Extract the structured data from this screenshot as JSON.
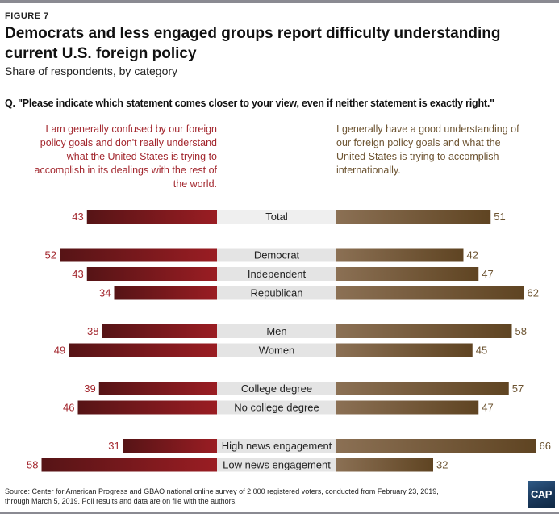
{
  "figure_label": "FIGURE 7",
  "title": "Democrats and less engaged groups report difficulty understanding current U.S. foreign policy",
  "subtitle": "Share of respondents, by category",
  "question": "Q. \"Please indicate which statement comes closer to your view, even if neither statement is exactly right.\"",
  "source": "Source: Center for American Progress and GBAO national online survey of 2,000 registered voters, conducted from February 23, 2019, through March 5, 2019. Poll results and data are on file with the authors.",
  "logo_text": "CAP",
  "colors": {
    "confused_dark": "#561416",
    "confused_light": "#9a1d23",
    "confused_label": "#a3272e",
    "understand_light": "#8b7054",
    "understand_dark": "#5f4422",
    "understand_label": "#6d5432",
    "category_bg": "#e4e4e4",
    "total_bg": "#efefef"
  },
  "chart_data": {
    "type": "bar",
    "orientation": "horizontal-diverging",
    "title": "Democrats and less engaged groups report difficulty understanding current U.S. foreign policy",
    "subtitle": "Share of respondents, by category",
    "unit": "percent",
    "xlim": [
      0,
      70
    ],
    "series": [
      {
        "name": "I am generally confused by our foreign policy goals and don't really understand what the United States is trying to accomplish in its dealings with the rest of the world.",
        "side": "left",
        "values": [
          43,
          52,
          43,
          34,
          38,
          49,
          39,
          46,
          31,
          58
        ]
      },
      {
        "name": "I generally have a good understanding of our foreign policy goals and what the United States is trying to accomplish internationally.",
        "side": "right",
        "values": [
          51,
          42,
          47,
          62,
          58,
          45,
          57,
          47,
          66,
          32
        ]
      }
    ],
    "categories": [
      "Total",
      "Democrat",
      "Independent",
      "Republican",
      "Men",
      "Women",
      "College degree",
      "No college degree",
      "High news engagement",
      "Low news engagement"
    ],
    "groups": [
      [
        "Total"
      ],
      [
        "Democrat",
        "Independent",
        "Republican"
      ],
      [
        "Men",
        "Women"
      ],
      [
        "College degree",
        "No college degree"
      ],
      [
        "High news engagement",
        "Low news engagement"
      ]
    ]
  }
}
